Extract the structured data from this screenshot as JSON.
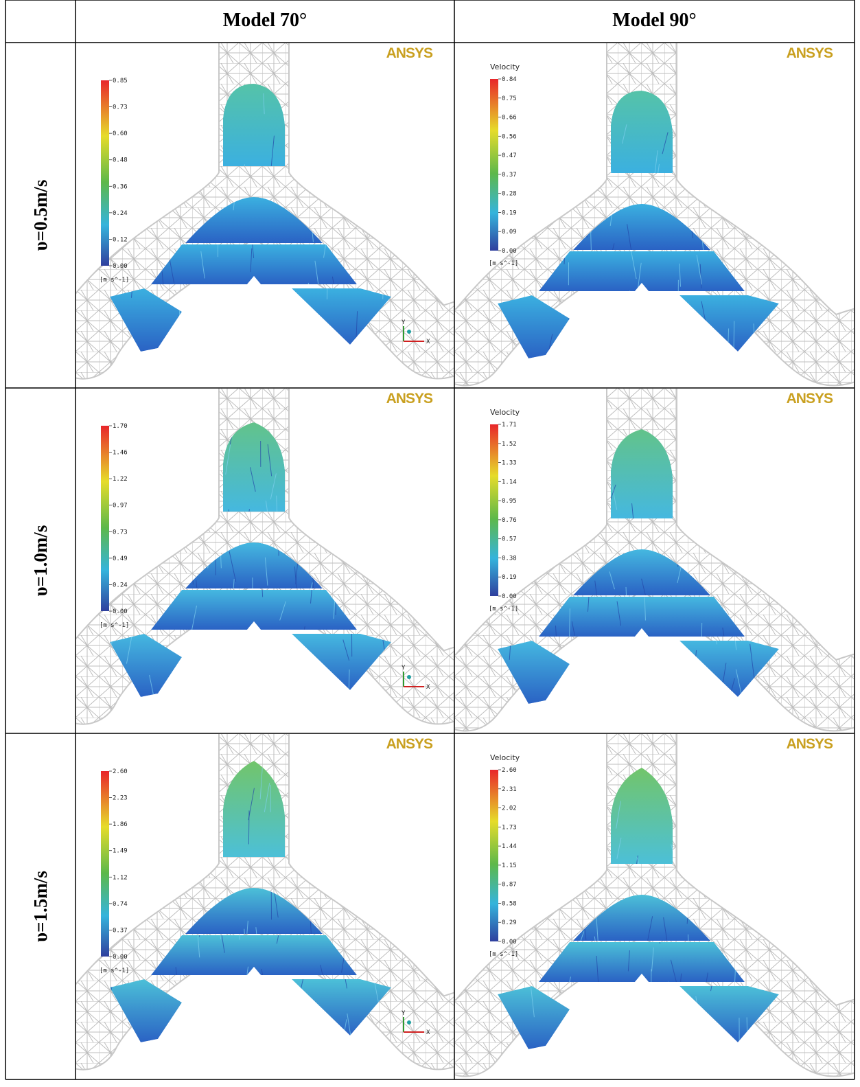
{
  "table": {
    "headers": [
      "Model 70°",
      "Model 90°"
    ],
    "rows": [
      {
        "label": "υ=0.5m/s",
        "cells": [
          {
            "logo": "ANSYS",
            "ticks": [
              "0.85",
              "0.73",
              "0.60",
              "0.48",
              "0.36",
              "0.24",
              "0.12",
              "0.00"
            ],
            "unit": "[m s^-1]",
            "axes": [
              "Y",
              "X"
            ]
          },
          {
            "logo": "ANSYS",
            "title": "Velocity",
            "ticks": [
              "0.84",
              "0.75",
              "0.66",
              "0.56",
              "0.47",
              "0.37",
              "0.28",
              "0.19",
              "0.09",
              "0.00"
            ],
            "unit": "[m s^-1]"
          }
        ]
      },
      {
        "label": "υ=1.0m/s",
        "cells": [
          {
            "logo": "ANSYS",
            "ticks": [
              "1.70",
              "1.46",
              "1.22",
              "0.97",
              "0.73",
              "0.49",
              "0.24",
              "0.00"
            ],
            "unit": "[m s^-1]",
            "axes": [
              "Y",
              "X"
            ]
          },
          {
            "logo": "ANSYS",
            "title": "Velocity",
            "ticks": [
              "1.71",
              "1.52",
              "1.33",
              "1.14",
              "0.95",
              "0.76",
              "0.57",
              "0.38",
              "0.19",
              "0.00"
            ],
            "unit": "[m s^-1]"
          }
        ]
      },
      {
        "label": "υ=1.5m/s",
        "cells": [
          {
            "logo": "ANSYS",
            "ticks": [
              "2.60",
              "2.23",
              "1.86",
              "1.49",
              "1.12",
              "0.74",
              "0.37",
              "0.00"
            ],
            "unit": "[m s^-1]",
            "axes": [
              "Y",
              "X"
            ]
          },
          {
            "logo": "ANSYS",
            "title": "Velocity",
            "ticks": [
              "2.60",
              "2.31",
              "2.02",
              "1.73",
              "1.44",
              "1.15",
              "0.87",
              "0.58",
              "0.29",
              "0.00"
            ],
            "unit": "[m s^-1]"
          }
        ]
      }
    ]
  }
}
